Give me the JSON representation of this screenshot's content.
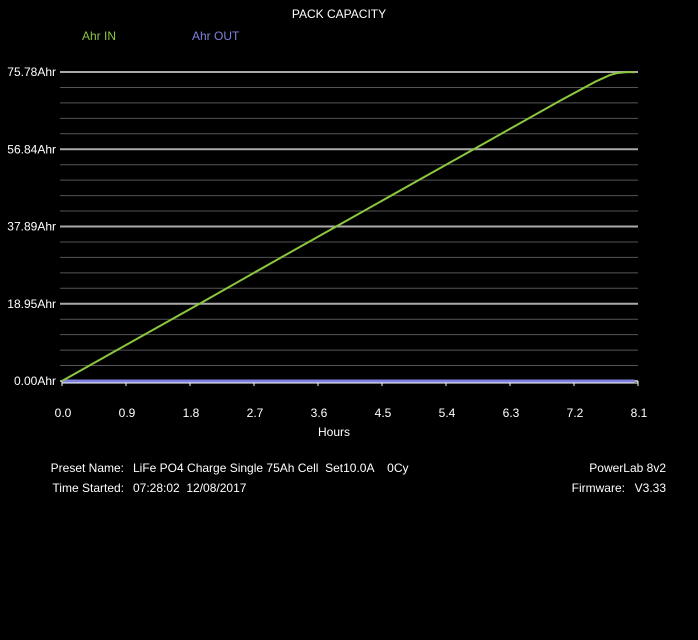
{
  "chart_data": {
    "type": "line",
    "title": "PACK CAPACITY",
    "x_label": "Hours",
    "x": [
      0,
      0.5,
      1,
      2,
      3,
      4,
      5,
      6,
      7,
      7.5,
      7.7,
      7.8,
      7.9,
      8.0,
      8.05
    ],
    "series": [
      {
        "name": "Ahr IN",
        "color": "#8cc63f",
        "values": [
          0,
          4.9,
          9.8,
          19.6,
          29.5,
          39.3,
          49.1,
          58.9,
          68.7,
          73.4,
          75.0,
          75.5,
          75.7,
          75.78,
          75.7
        ]
      },
      {
        "name": "Ahr OUT",
        "color": "#8080e0",
        "values": [
          0,
          0,
          0,
          0,
          0,
          0,
          0,
          0,
          0,
          0,
          0,
          0,
          0,
          0,
          0
        ]
      }
    ],
    "xlim": [
      0,
      8.1
    ],
    "xticks": [
      {
        "value": 0,
        "label": "0.0"
      },
      0.9,
      1.8,
      2.7,
      3.6,
      4.5,
      5.4,
      6.3,
      7.2,
      8.1
    ],
    "ylim": [
      0,
      75.78
    ],
    "yticks": [
      {
        "value": 0,
        "label": "0.00Ahr"
      },
      {
        "value": 18.95,
        "label": "18.95Ahr"
      },
      {
        "value": 37.89,
        "label": "37.89Ahr"
      },
      {
        "value": 56.84,
        "label": "56.84Ahr"
      },
      {
        "value": 75.78,
        "label": "75.78Ahr"
      }
    ],
    "y_minor_ticks": [
      3.789,
      7.578,
      11.367,
      15.156,
      22.734,
      26.523,
      30.312,
      34.101,
      41.679,
      45.468,
      49.257,
      53.046,
      60.624,
      64.413,
      68.202,
      71.991
    ],
    "grid": true,
    "info": {
      "preset_label": "Preset Name:",
      "preset": "LiFe PO4 Charge Single 75Ah Cell  Set10.0A    0Cy",
      "time_label": "Time Started:",
      "time": "07:28:02  12/08/2017",
      "device": "PowerLab 8v2",
      "firmware_label": "Firmware:",
      "firmware": "V3.33"
    }
  }
}
